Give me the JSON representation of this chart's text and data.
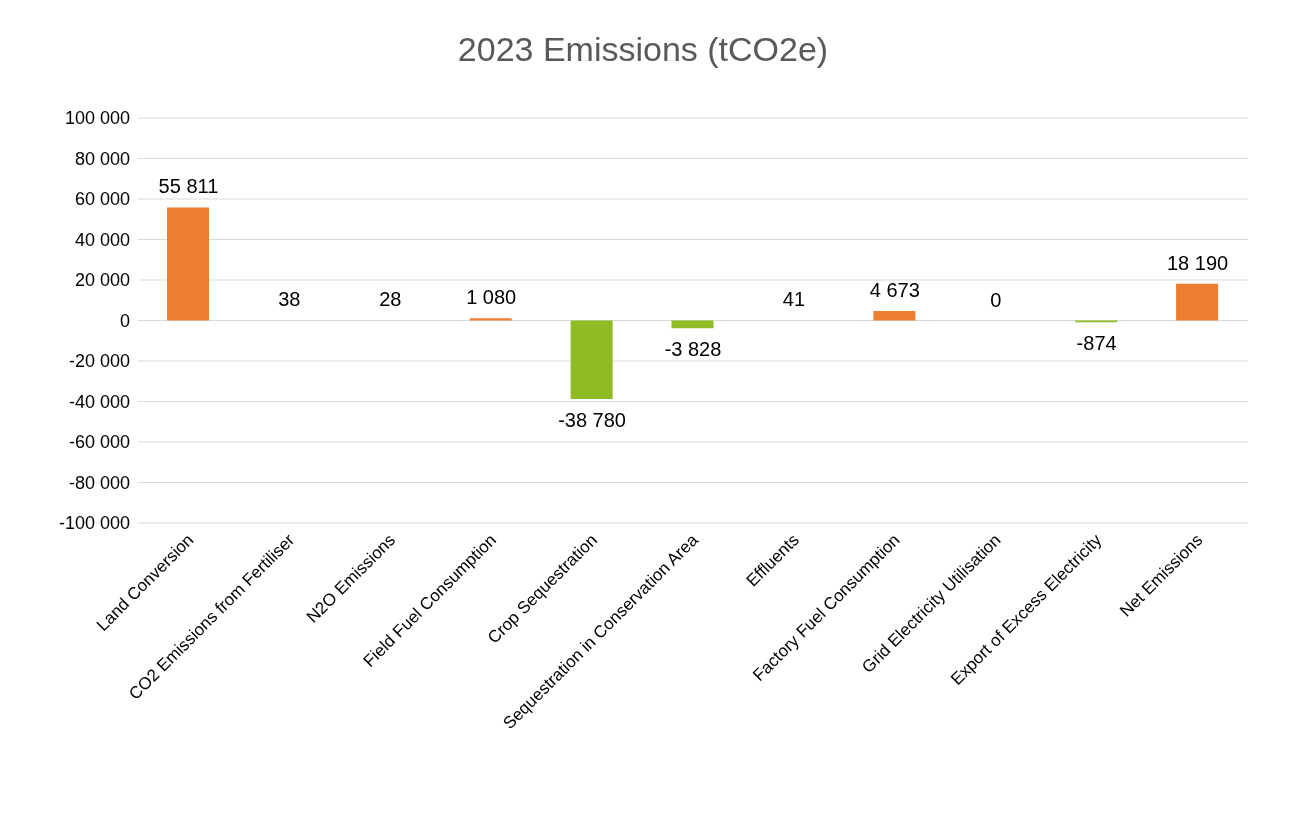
{
  "chart_data": {
    "type": "bar",
    "title": "2023 Emissions (tCO2e)",
    "categories": [
      "Land Conversion",
      "CO2 Emissions from Fertiliser",
      "N2O Emissions",
      "Field Fuel Consumption",
      "Crop Sequestration",
      "Sequestration in Conservation Area",
      "Effluents",
      "Factory Fuel Consumption",
      "Grid Electricity Utilisation",
      "Export of Excess Electricity",
      "Net Emissions"
    ],
    "values": [
      55811,
      38,
      28,
      1080,
      -38780,
      -3828,
      41,
      4673,
      0,
      -874,
      18190
    ],
    "colors": [
      "#ed7d31",
      "#ed7d31",
      "#ed7d31",
      "#ed7d31",
      "#8fbc24",
      "#8fbc24",
      "#ed7d31",
      "#ed7d31",
      "#ed7d31",
      "#8fbc24",
      "#ed7d31"
    ],
    "value_labels": [
      "55 811",
      "38",
      "28",
      "1 080",
      "-38 780",
      "-3 828",
      "41",
      "4 673",
      "0",
      "-874",
      "18 190"
    ],
    "ylim": [
      -100000,
      100000
    ],
    "yticks": [
      {
        "value": -100000,
        "label": "-100 000"
      },
      {
        "value": -80000,
        "label": "-80 000"
      },
      {
        "value": -60000,
        "label": "-60 000"
      },
      {
        "value": -40000,
        "label": "-40 000"
      },
      {
        "value": -20000,
        "label": "-20 000"
      },
      0,
      {
        "value": 20000,
        "label": "20 000"
      },
      {
        "value": 40000,
        "label": "40 000"
      },
      {
        "value": 60000,
        "label": "60 000"
      },
      {
        "value": 80000,
        "label": "80 000"
      },
      {
        "value": 100000,
        "label": "100 000"
      }
    ],
    "grid": "y",
    "legend": false
  }
}
